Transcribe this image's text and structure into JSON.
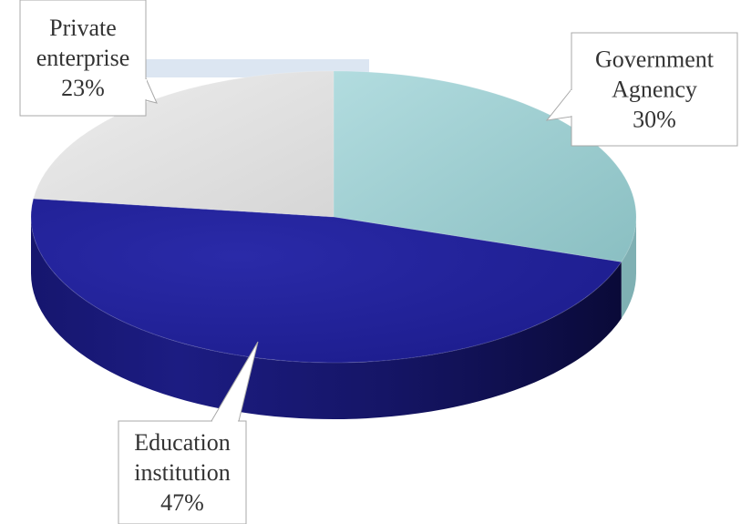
{
  "chart_data": {
    "type": "pie",
    "style": "3d",
    "slices": [
      {
        "label_lines": [
          "Government",
          "Agnency"
        ],
        "value": 30,
        "value_label": "30%",
        "color": "#9fd0d2"
      },
      {
        "label_lines": [
          "Education",
          "institution"
        ],
        "value": 47,
        "value_label": "47%",
        "color": "#23239a"
      },
      {
        "label_lines": [
          "Private",
          "enterprise"
        ],
        "value": 23,
        "value_label": "23%",
        "color": "#e6e6e6"
      }
    ],
    "start": "12 o'clock",
    "direction": "clockwise",
    "legend": "none",
    "labels": "callouts"
  }
}
